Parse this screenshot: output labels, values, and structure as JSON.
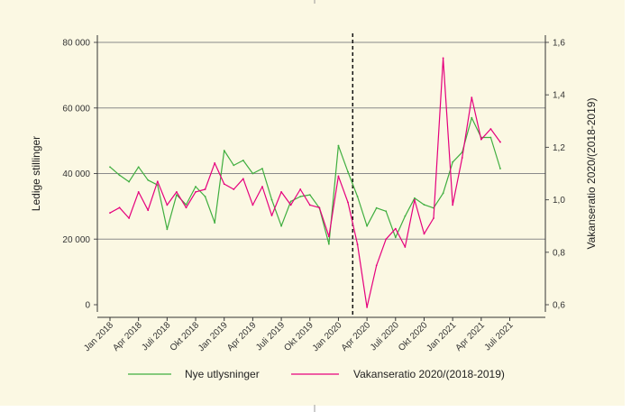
{
  "colors": {
    "background": "#fbf8e3",
    "grid": "#8a8a8a",
    "green_series": "#3fae3f",
    "magenta_series": "#e5007d",
    "divider": "#111111"
  },
  "chart_data": {
    "type": "line",
    "x": [
      "Jan 2018",
      "Feb 2018",
      "Mar 2018",
      "Apr 2018",
      "May 2018",
      "Jun 2018",
      "Jul 2018",
      "Aug 2018",
      "Sep 2018",
      "Oct 2018",
      "Nov 2018",
      "Dec 2018",
      "Jan 2019",
      "Feb 2019",
      "Mar 2019",
      "Apr 2019",
      "May 2019",
      "Jun 2019",
      "Jul 2019",
      "Aug 2019",
      "Sep 2019",
      "Oct 2019",
      "Nov 2019",
      "Dec 2019",
      "Jan 2020",
      "Feb 2020",
      "Mar 2020",
      "Apr 2020",
      "May 2020",
      "Jun 2020",
      "Jul 2020",
      "Aug 2020",
      "Sep 2020",
      "Oct 2020",
      "Nov 2020",
      "Dec 2020",
      "Jan 2021",
      "Feb 2021",
      "Mar 2021",
      "Apr 2021",
      "May 2021",
      "Jun 2021"
    ],
    "xtick_labels": [
      "Jan 2018",
      "Apr 2018",
      "Juli 2018",
      "Okt 2018",
      "Jan 2019",
      "Apr 2019",
      "Juli 2019",
      "Okt 2019",
      "Jan 2020",
      "Apr 2020",
      "Juli 2020",
      "Okt 2020",
      "Jan 2021",
      "Apr 2021",
      "Juli 2021"
    ],
    "xtick_indices": [
      0,
      3,
      6,
      9,
      12,
      15,
      18,
      21,
      24,
      27,
      30,
      33,
      36,
      39,
      42
    ],
    "ylabel_left": "Ledige stillinger",
    "ylabel_right": "Vakanseratio 2020/(2018-2019)",
    "ylim_left": [
      0,
      80000
    ],
    "ylim_right": [
      0.6,
      1.6
    ],
    "yticks_left": [
      "0",
      "20 000",
      "40 000",
      "60 000",
      "80 000"
    ],
    "yticks_left_values": [
      0,
      20000,
      40000,
      60000,
      80000
    ],
    "yticks_right": [
      "0,6",
      "0,8",
      "1,0",
      "1,2",
      "1,4",
      "1,6"
    ],
    "yticks_right_values": [
      0.6,
      0.8,
      1.0,
      1.2,
      1.4,
      1.6
    ],
    "grid": "horizontal",
    "vertical_marker_between": [
      "Feb 2020",
      "Mar 2020"
    ],
    "series": [
      {
        "name": "Nye utlysninger",
        "axis": "left",
        "values": [
          42000,
          39500,
          37500,
          42000,
          38000,
          36500,
          23000,
          33500,
          30500,
          36000,
          33000,
          25000,
          47000,
          42500,
          44000,
          40000,
          41500,
          32000,
          24000,
          31500,
          33000,
          33500,
          29500,
          18500,
          48500,
          40500,
          33000,
          24000,
          29500,
          28500,
          20500,
          27000,
          32500,
          30500,
          29500,
          34000,
          43500,
          46500,
          57000,
          51000,
          51000,
          41500
        ]
      },
      {
        "name": "Vakanseratio 2020/(2018-2019)",
        "axis": "right",
        "values": [
          0.95,
          0.97,
          0.93,
          1.03,
          0.96,
          1.07,
          0.98,
          1.03,
          0.97,
          1.03,
          1.04,
          1.14,
          1.06,
          1.04,
          1.08,
          0.98,
          1.05,
          0.94,
          1.03,
          0.98,
          1.04,
          0.98,
          0.97,
          0.86,
          1.09,
          0.99,
          0.83,
          0.59,
          0.75,
          0.85,
          0.89,
          0.82,
          1.0,
          0.87,
          0.93,
          1.54,
          0.98,
          1.16,
          1.39,
          1.23,
          1.27,
          1.22
        ]
      }
    ]
  },
  "legend": {
    "items": [
      "Nye utlysninger",
      "Vakanseratio 2020/(2018-2019)"
    ],
    "placement": "bottom"
  }
}
